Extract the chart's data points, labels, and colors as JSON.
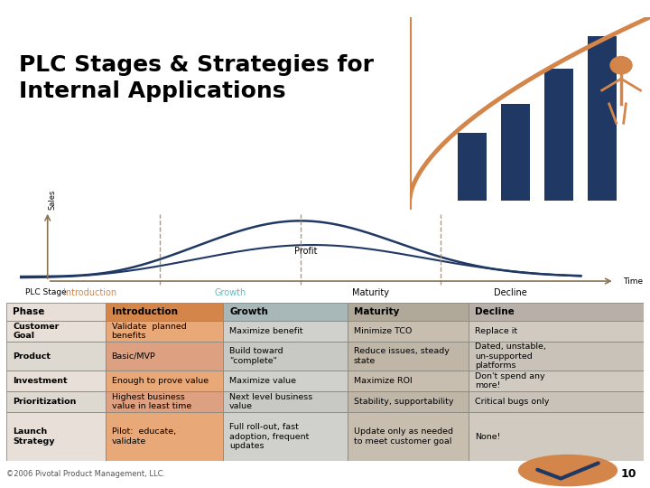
{
  "title_line1": "PLC Stages & Strategies for",
  "title_line2": "Internal Applications",
  "title_fontsize": 18,
  "bg_color": "#ffffff",
  "curve_color": "#1f3864",
  "axis_color": "#8B7355",
  "dashed_color": "#9B8B75",
  "sales_label": "Sales",
  "profit_label": "Profit",
  "time_label": "Time",
  "plc_stage_label": "PLC Stage",
  "stages": [
    "Introduction",
    "Growth",
    "Maturity",
    "Decline"
  ],
  "stage_colors": [
    "#d4854a",
    "#5bbfbf",
    "#000000",
    "#000000"
  ],
  "table_header_row": [
    "Phase",
    "Introduction",
    "Growth",
    "Maturity",
    "Decline"
  ],
  "header_col0_bg": "#e8e0d8",
  "header_col1_bg": "#d4854a",
  "header_col2_bg": "#a8b8b8",
  "header_col3_bg": "#b0a898",
  "header_col4_bg": "#b8b0a8",
  "row_label_bg": "#e8e0d8",
  "col_intro_bg": "#e8a878",
  "col_growth_bg": "#d0d0cc",
  "col_maturity_bg": "#c8beb0",
  "col_decline_bg": "#d0cac0",
  "row_label_alt_bg": "#ddd8d0",
  "col_intro_alt_bg": "#dda080",
  "col_growth_alt_bg": "#c8c8c4",
  "col_maturity_alt_bg": "#c0b6a8",
  "col_decline_alt_bg": "#c8c2b8",
  "table_rows": [
    {
      "label": "Customer\nGoal",
      "intro": "Validate  planned\nbenefits",
      "growth": "Maximize benefit",
      "maturity": "Minimize TCO",
      "decline": "Replace it"
    },
    {
      "label": "Product",
      "intro": "Basic/MVP",
      "growth": "Build toward\n\"complete\"",
      "maturity": "Reduce issues, steady\nstate",
      "decline": "Dated, unstable,\nun-supported\nplatforms"
    },
    {
      "label": "Investment",
      "intro": "Enough to prove value",
      "growth": "Maximize value",
      "maturity": "Maximize ROI",
      "decline": "Don't spend any\nmore!"
    },
    {
      "label": "Prioritization",
      "intro": "Highest business\nvalue in least time",
      "growth": "Next level business\nvalue",
      "maturity": "Stability, supportability",
      "decline": "Critical bugs only"
    },
    {
      "label": "Launch\nStrategy",
      "intro": "Pilot:  educate,\nvalidate",
      "growth": "Full roll-out, fast\nadoption, frequent\nupdates",
      "maturity": "Update only as needed\nto meet customer goal",
      "decline": "None!"
    }
  ],
  "footer_text": "©2006 Pivotal Product Management, LLC.",
  "page_number": "10",
  "table_line_color": "#888880",
  "orange_accent": "#d4854a",
  "dark_blue": "#1f3864"
}
